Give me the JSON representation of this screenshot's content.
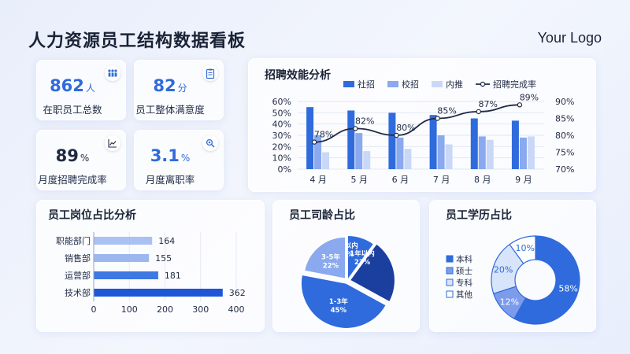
{
  "page_title": "人力资源员工结构数据看板",
  "logo_text": "Your Logo",
  "kpis": [
    {
      "value": "862",
      "unit": "人",
      "label": "在职员工总数",
      "icon": "people-icon"
    },
    {
      "value": "82",
      "unit": "分",
      "label": "员工整体满意度",
      "icon": "clipboard-icon"
    },
    {
      "value": "89",
      "unit": "%",
      "label": "月度招聘完成率",
      "icon": "trend-chart-icon"
    },
    {
      "value": "3.1",
      "unit": "%",
      "label": "月度离职率",
      "icon": "search-icon"
    }
  ],
  "colors": {
    "primary": "#2f6bdc",
    "mid": "#8aa9ee",
    "light": "#c9d8f7",
    "dark": "#1a3f9e",
    "line": "#1f2a44"
  },
  "chart_data": [
    {
      "type": "bar",
      "title": "招聘效能分析",
      "categories": [
        "4 月",
        "5 月",
        "6 月",
        "7 月",
        "8 月",
        "9 月"
      ],
      "series": [
        {
          "name": "社招",
          "values": [
            55,
            52,
            50,
            48,
            45,
            43
          ]
        },
        {
          "name": "校招",
          "values": [
            30,
            32,
            28,
            30,
            29,
            28
          ]
        },
        {
          "name": "内推",
          "values": [
            15,
            16,
            18,
            22,
            26,
            29
          ]
        }
      ],
      "line_series": {
        "name": "招聘完成率",
        "values": [
          78,
          82,
          80,
          85,
          87,
          89
        ],
        "labels": [
          "78%",
          "82%",
          "80%",
          "85%",
          "87%",
          "89%"
        ]
      },
      "ylim": [
        0,
        60
      ],
      "y_ticks": [
        "0%",
        "10%",
        "20%",
        "30%",
        "40%",
        "50%",
        "60%"
      ],
      "y2lim": [
        70,
        90
      ],
      "y2_ticks": [
        "70%",
        "75%",
        "80%",
        "85%",
        "90%"
      ],
      "legend_position": "top"
    },
    {
      "type": "bar",
      "orientation": "horizontal",
      "title": "员工岗位占比分析",
      "categories": [
        "职能部门",
        "销售部",
        "运营部",
        "技术部"
      ],
      "values": [
        164,
        155,
        181,
        362
      ],
      "value_labels": [
        "164",
        "155",
        "181",
        "362"
      ],
      "xlim": [
        0,
        400
      ],
      "x_ticks": [
        "0",
        "100",
        "200",
        "300",
        "400"
      ]
    },
    {
      "type": "pie",
      "title": "员工司龄占比",
      "slices": [
        {
          "name": "5年以内",
          "value": 10,
          "label_line1": "5年以内",
          "label_line2": "10%"
        },
        {
          "name": "1年以内",
          "value": 23,
          "label_line1": "1年以内",
          "label_line2": "23%"
        },
        {
          "name": "1-3年",
          "value": 45,
          "label_line1": "1-3年",
          "label_line2": "45%"
        },
        {
          "name": "3-5年",
          "value": 22,
          "label_line1": "3-5年",
          "label_line2": "22%"
        }
      ]
    },
    {
      "type": "pie",
      "subtype": "donut",
      "title": "员工学历占比",
      "slices": [
        {
          "name": "本科",
          "value": 58,
          "label": "58%"
        },
        {
          "name": "硕士",
          "value": 12,
          "label": "12%"
        },
        {
          "name": "专科",
          "value": 20,
          "label": "20%"
        },
        {
          "name": "其他",
          "value": 10,
          "label": "10%"
        }
      ],
      "legend_position": "left"
    }
  ]
}
